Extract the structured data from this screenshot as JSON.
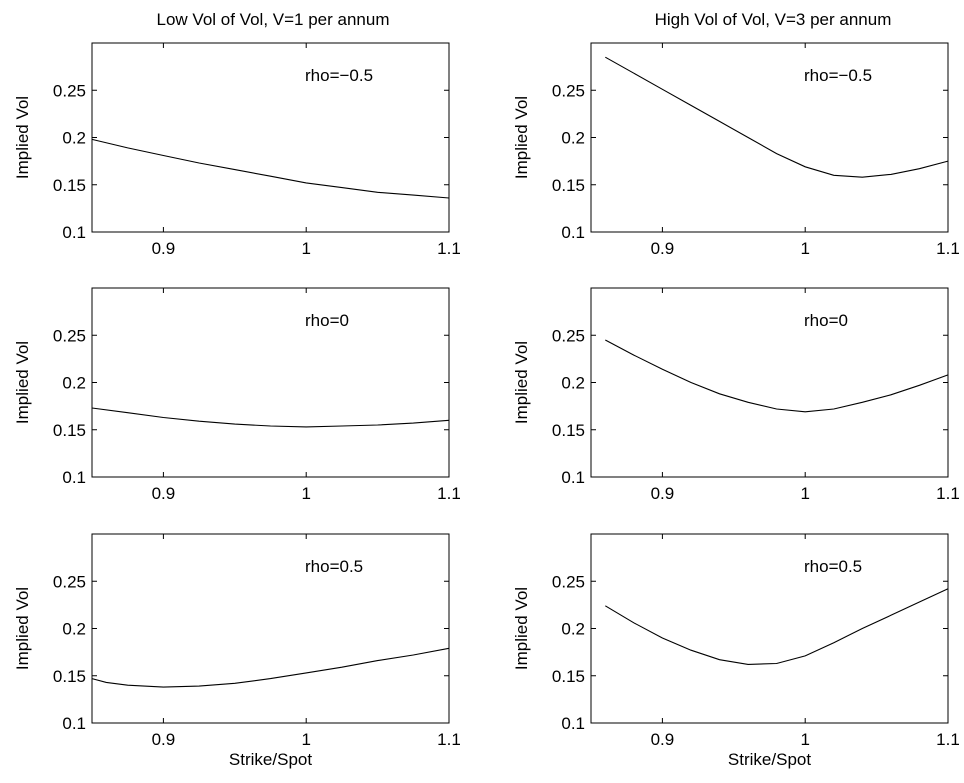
{
  "figure": {
    "column_titles": [
      "Low Vol of Vol, V=1 per annum",
      "High Vol of Vol, V=3 per annum"
    ]
  },
  "chart_data": [
    {
      "type": "line",
      "column": 0,
      "row": 0,
      "annotation": "rho=−0.5",
      "xlabel": "",
      "ylabel": "Implied Vol",
      "xlim": [
        0.85,
        1.1
      ],
      "ylim": [
        0.1,
        0.3
      ],
      "xticks": [
        "0.9",
        "1",
        "1.1"
      ],
      "yticks": [
        "0.1",
        "0.15",
        "0.2",
        "0.25"
      ],
      "x": [
        0.85,
        0.875,
        0.9,
        0.925,
        0.95,
        0.975,
        1.0,
        1.025,
        1.05,
        1.075,
        1.1
      ],
      "y": [
        0.198,
        0.189,
        0.181,
        0.173,
        0.166,
        0.159,
        0.152,
        0.147,
        0.142,
        0.139,
        0.136
      ]
    },
    {
      "type": "line",
      "column": 0,
      "row": 1,
      "annotation": "rho=0",
      "xlabel": "",
      "ylabel": "Implied Vol",
      "xlim": [
        0.85,
        1.1
      ],
      "ylim": [
        0.1,
        0.3
      ],
      "xticks": [
        "0.9",
        "1",
        "1.1"
      ],
      "yticks": [
        "0.1",
        "0.15",
        "0.2",
        "0.25"
      ],
      "x": [
        0.85,
        0.875,
        0.9,
        0.925,
        0.95,
        0.975,
        1.0,
        1.025,
        1.05,
        1.075,
        1.1
      ],
      "y": [
        0.173,
        0.168,
        0.163,
        0.159,
        0.156,
        0.154,
        0.153,
        0.154,
        0.155,
        0.157,
        0.16
      ]
    },
    {
      "type": "line",
      "column": 0,
      "row": 2,
      "annotation": "rho=0.5",
      "xlabel": "Strike/Spot",
      "ylabel": "Implied Vol",
      "xlim": [
        0.85,
        1.1
      ],
      "ylim": [
        0.1,
        0.3
      ],
      "xticks": [
        "0.9",
        "1",
        "1.1"
      ],
      "yticks": [
        "0.1",
        "0.15",
        "0.2",
        "0.25"
      ],
      "x": [
        0.85,
        0.86,
        0.875,
        0.9,
        0.925,
        0.95,
        0.975,
        1.0,
        1.025,
        1.05,
        1.075,
        1.1
      ],
      "y": [
        0.147,
        0.143,
        0.14,
        0.138,
        0.139,
        0.142,
        0.147,
        0.153,
        0.159,
        0.166,
        0.172,
        0.179
      ]
    },
    {
      "type": "line",
      "column": 1,
      "row": 0,
      "annotation": "rho=−0.5",
      "xlabel": "",
      "ylabel": "Implied Vol",
      "xlim": [
        0.85,
        1.1
      ],
      "ylim": [
        0.1,
        0.3
      ],
      "xticks": [
        "0.9",
        "1",
        "1.1"
      ],
      "yticks": [
        "0.1",
        "0.15",
        "0.2",
        "0.25"
      ],
      "x": [
        0.86,
        0.88,
        0.9,
        0.92,
        0.94,
        0.96,
        0.98,
        1.0,
        1.02,
        1.04,
        1.06,
        1.08,
        1.1
      ],
      "y": [
        0.285,
        0.268,
        0.251,
        0.234,
        0.217,
        0.2,
        0.183,
        0.169,
        0.16,
        0.158,
        0.161,
        0.167,
        0.175
      ]
    },
    {
      "type": "line",
      "column": 1,
      "row": 1,
      "annotation": "rho=0",
      "xlabel": "",
      "ylabel": "Implied Vol",
      "xlim": [
        0.85,
        1.1
      ],
      "ylim": [
        0.1,
        0.3
      ],
      "xticks": [
        "0.9",
        "1",
        "1.1"
      ],
      "yticks": [
        "0.1",
        "0.15",
        "0.2",
        "0.25"
      ],
      "x": [
        0.86,
        0.88,
        0.9,
        0.92,
        0.94,
        0.96,
        0.98,
        1.0,
        1.02,
        1.04,
        1.06,
        1.08,
        1.1
      ],
      "y": [
        0.245,
        0.229,
        0.214,
        0.2,
        0.188,
        0.179,
        0.172,
        0.169,
        0.172,
        0.179,
        0.187,
        0.197,
        0.208
      ]
    },
    {
      "type": "line",
      "column": 1,
      "row": 2,
      "annotation": "rho=0.5",
      "xlabel": "Strike/Spot",
      "ylabel": "Implied Vol",
      "xlim": [
        0.85,
        1.1
      ],
      "ylim": [
        0.1,
        0.3
      ],
      "xticks": [
        "0.9",
        "1",
        "1.1"
      ],
      "yticks": [
        "0.1",
        "0.15",
        "0.2",
        "0.25"
      ],
      "x": [
        0.86,
        0.88,
        0.9,
        0.92,
        0.94,
        0.96,
        0.98,
        1.0,
        1.02,
        1.04,
        1.06,
        1.08,
        1.1
      ],
      "y": [
        0.224,
        0.206,
        0.19,
        0.177,
        0.167,
        0.162,
        0.163,
        0.171,
        0.185,
        0.2,
        0.214,
        0.228,
        0.242
      ]
    }
  ]
}
